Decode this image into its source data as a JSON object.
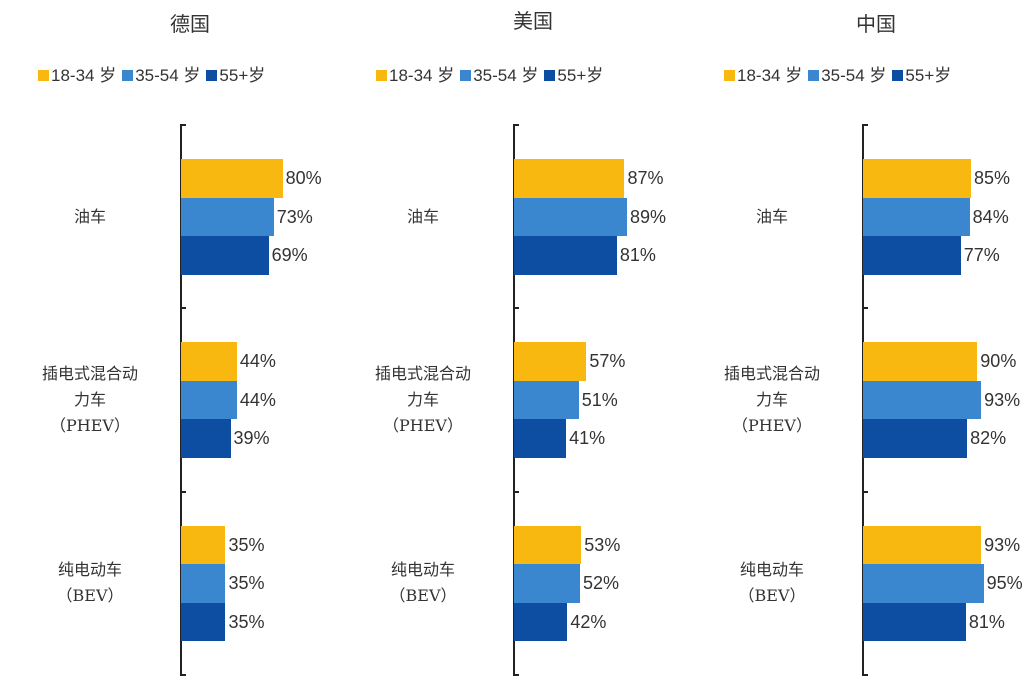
{
  "chart_data": [
    {
      "type": "bar",
      "orientation": "horizontal",
      "title": "德国",
      "categories": [
        "油车",
        "插电式混合动\n力车\n（PHEV）",
        "纯电动车\n（BEV）"
      ],
      "series": [
        {
          "name": "18-34 岁",
          "color": "#f8b80f",
          "values": [
            80,
            44,
            35
          ],
          "value_labels": [
            "80%",
            "44%",
            "35%"
          ]
        },
        {
          "name": "35-54 岁",
          "color": "#3a87d0",
          "values": [
            73,
            44,
            35
          ],
          "value_labels": [
            "73%",
            "44%",
            "35%"
          ]
        },
        {
          "name": "55+岁",
          "color": "#0d4ea3",
          "values": [
            69,
            39,
            35
          ],
          "value_labels": [
            "69%",
            "39%",
            "35%"
          ]
        }
      ]
    },
    {
      "type": "bar",
      "orientation": "horizontal",
      "title": "美国",
      "categories": [
        "油车",
        "插电式混合动\n力车\n（PHEV）",
        "纯电动车\n（BEV）"
      ],
      "series": [
        {
          "name": "18-34 岁",
          "color": "#f8b80f",
          "values": [
            87,
            57,
            53
          ],
          "value_labels": [
            "87%",
            "57%",
            "53%"
          ]
        },
        {
          "name": "35-54 岁",
          "color": "#3a87d0",
          "values": [
            89,
            51,
            52
          ],
          "value_labels": [
            "89%",
            "51%",
            "52%"
          ]
        },
        {
          "name": "55+岁",
          "color": "#0d4ea3",
          "values": [
            81,
            41,
            42
          ],
          "value_labels": [
            "81%",
            "41%",
            "42%"
          ]
        }
      ]
    },
    {
      "type": "bar",
      "orientation": "horizontal",
      "title": "中国",
      "categories": [
        "油车",
        "插电式混合动\n力车\n（PHEV）",
        "纯电动车\n（BEV）"
      ],
      "series": [
        {
          "name": "18-34 岁",
          "color": "#f8b80f",
          "values": [
            85,
            90,
            93
          ],
          "value_labels": [
            "85%",
            "90%",
            "93%"
          ]
        },
        {
          "name": "35-54 岁",
          "color": "#3a87d0",
          "values": [
            84,
            93,
            95
          ],
          "value_labels": [
            "84%",
            "93%",
            "95%"
          ]
        },
        {
          "name": "55+岁",
          "color": "#0d4ea3",
          "values": [
            77,
            82,
            81
          ],
          "value_labels": [
            "77%",
            "82%",
            "81%"
          ]
        }
      ]
    }
  ]
}
